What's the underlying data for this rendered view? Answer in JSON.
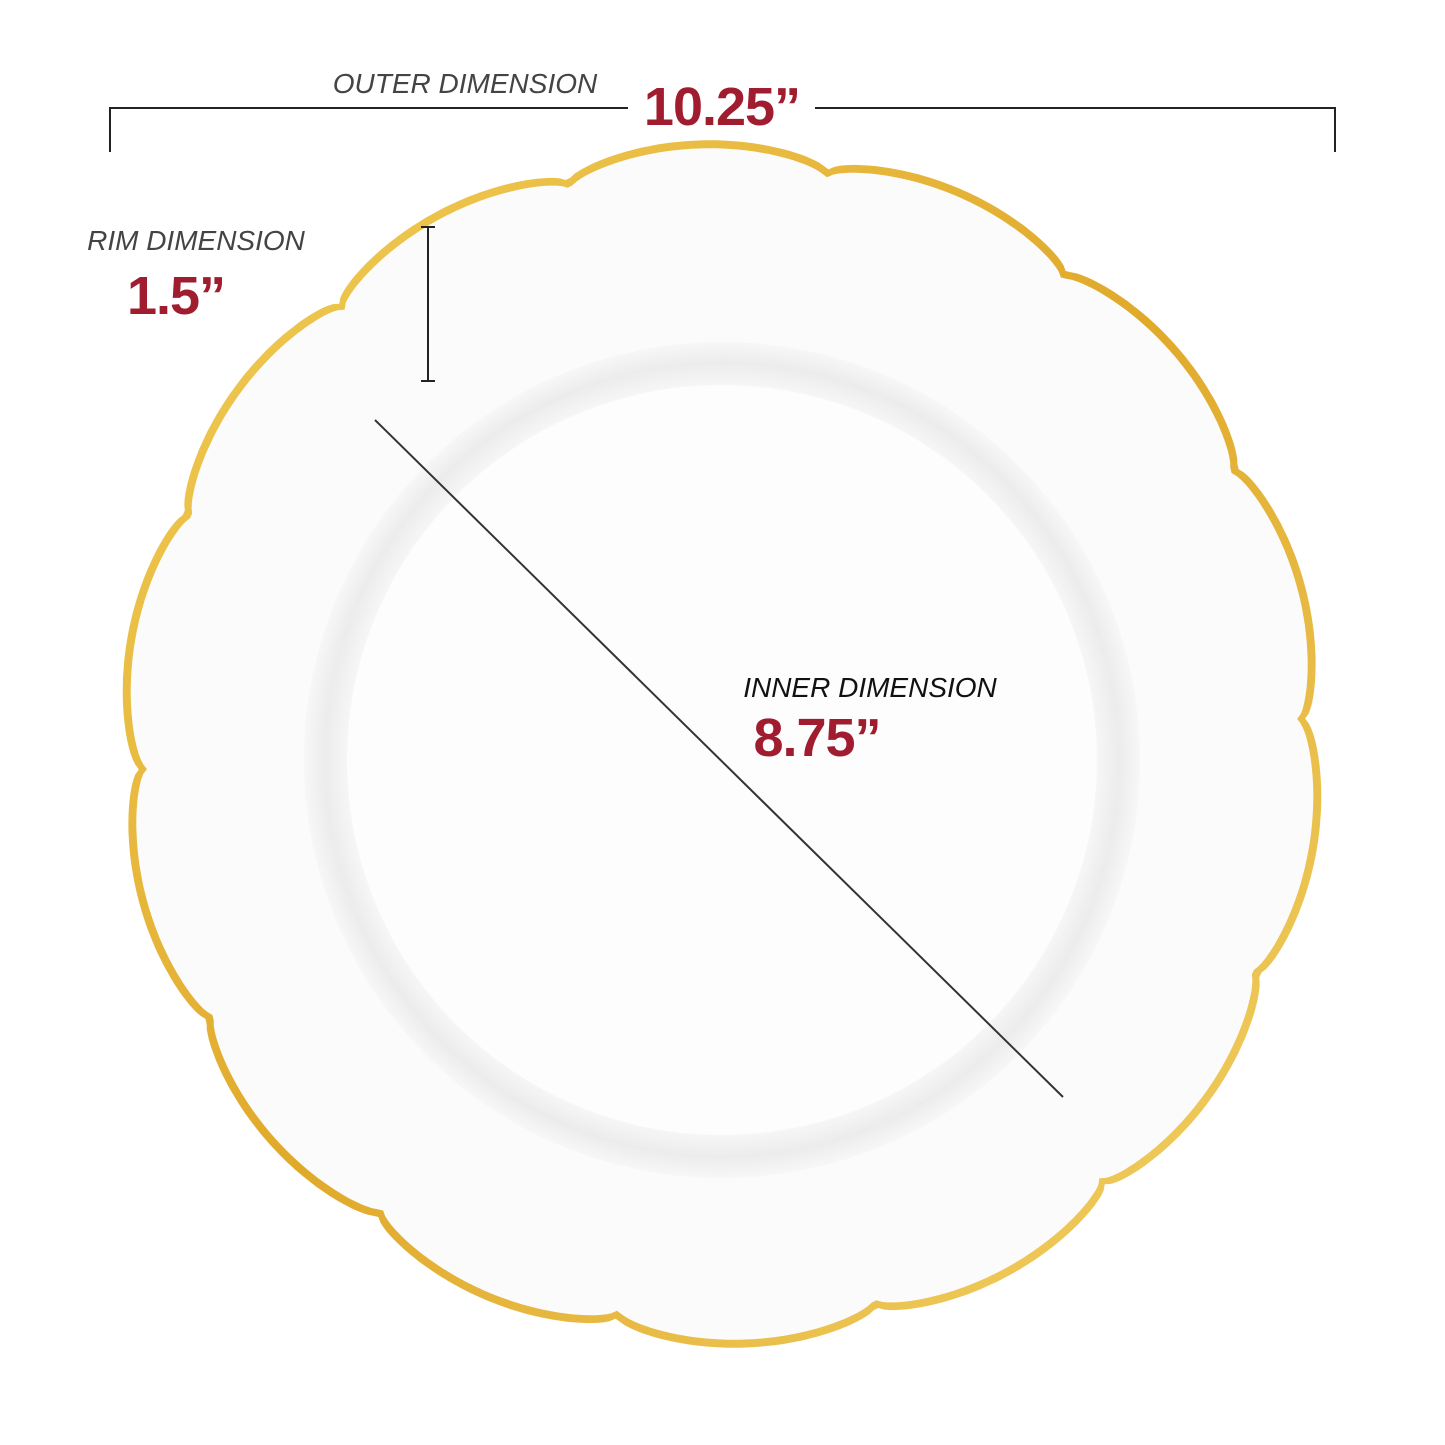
{
  "outer": {
    "label": "OUTER DIMENSION",
    "value": "10.25”"
  },
  "rim": {
    "label": "RIM DIMENSION",
    "value": "1.5”"
  },
  "inner": {
    "label": "INNER DIMENSION",
    "value": "8.75”"
  }
}
